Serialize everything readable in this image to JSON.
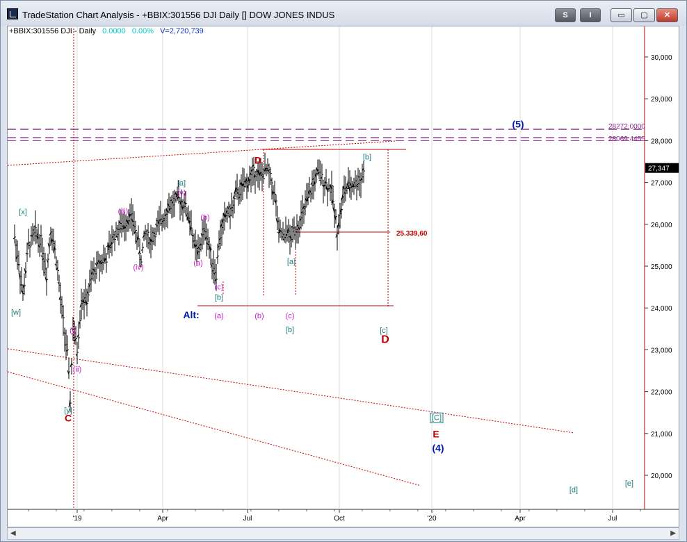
{
  "window": {
    "title": "TradeStation Chart Analysis - +BBIX:301556 DJI Daily [] DOW JONES INDUS",
    "buttons": {
      "s": "S",
      "i": "I",
      "min": "▭",
      "max": "▢",
      "close": "✕"
    }
  },
  "info": {
    "symbol": "+BBIX:301556 DJI - Daily",
    "change": "0.0000",
    "pct": "0.00%",
    "volume": "V=2,720,739"
  },
  "colors": {
    "red": "#c00000",
    "teal": "#1f7f7f",
    "magenta": "#cc22cc",
    "blue": "#0018a8",
    "purple": "#8a2a8a",
    "bars": "#000000"
  },
  "chart_data": {
    "type": "ohlc",
    "yticks": [
      "30,000",
      "29,000",
      "28,000",
      "27,000",
      "26,000",
      "25,000",
      "24,000",
      "23,000",
      "22,000",
      "21,000",
      "20,000"
    ],
    "xticks": [
      "'19",
      "Apr",
      "Jul",
      "Oct",
      "'20",
      "Apr",
      "Jul"
    ],
    "last_price": "27,347",
    "levels": [
      {
        "value": 28272,
        "label": "28272.0000"
      },
      {
        "value": 28069.4455,
        "label": "28069.4455"
      },
      {
        "value": 25339.6,
        "label": "25.339,60"
      }
    ],
    "price_path": [
      [
        0,
        25700
      ],
      [
        6,
        25100
      ],
      [
        12,
        24300
      ],
      [
        20,
        25500
      ],
      [
        30,
        25800
      ],
      [
        38,
        25600
      ],
      [
        46,
        24800
      ],
      [
        52,
        25900
      ],
      [
        60,
        25200
      ],
      [
        66,
        24200
      ],
      [
        72,
        23400
      ],
      [
        76,
        22900
      ],
      [
        80,
        21800
      ],
      [
        84,
        23500
      ],
      [
        90,
        23000
      ],
      [
        96,
        24200
      ],
      [
        104,
        24200
      ],
      [
        112,
        24800
      ],
      [
        122,
        25100
      ],
      [
        132,
        25200
      ],
      [
        142,
        25700
      ],
      [
        150,
        25900
      ],
      [
        158,
        26000
      ],
      [
        164,
        26200
      ],
      [
        170,
        26100
      ],
      [
        176,
        25700
      ],
      [
        182,
        25200
      ],
      [
        188,
        25800
      ],
      [
        196,
        25600
      ],
      [
        204,
        25900
      ],
      [
        212,
        26100
      ],
      [
        220,
        26400
      ],
      [
        228,
        26500
      ],
      [
        236,
        26600
      ],
      [
        244,
        26500
      ],
      [
        250,
        26200
      ],
      [
        254,
        26000
      ],
      [
        258,
        25500
      ],
      [
        264,
        25300
      ],
      [
        270,
        25700
      ],
      [
        274,
        25900
      ],
      [
        278,
        25600
      ],
      [
        282,
        25300
      ],
      [
        286,
        25000
      ],
      [
        290,
        24800
      ],
      [
        294,
        25600
      ],
      [
        300,
        26000
      ],
      [
        306,
        26300
      ],
      [
        312,
        26300
      ],
      [
        318,
        26700
      ],
      [
        324,
        26800
      ],
      [
        330,
        26900
      ],
      [
        336,
        27050
      ],
      [
        342,
        27200
      ],
      [
        348,
        27300
      ],
      [
        352,
        27150
      ],
      [
        358,
        27200
      ],
      [
        364,
        27300
      ],
      [
        370,
        27000
      ],
      [
        376,
        26500
      ],
      [
        380,
        25700
      ],
      [
        384,
        25800
      ],
      [
        388,
        25600
      ],
      [
        392,
        25900
      ],
      [
        396,
        25600
      ],
      [
        400,
        25800
      ],
      [
        404,
        25900
      ],
      [
        408,
        26000
      ],
      [
        412,
        26100
      ],
      [
        418,
        26400
      ],
      [
        424,
        26700
      ],
      [
        430,
        27000
      ],
      [
        436,
        27200
      ],
      [
        440,
        27150
      ],
      [
        446,
        27000
      ],
      [
        452,
        26900
      ],
      [
        456,
        26800
      ],
      [
        460,
        26300
      ],
      [
        464,
        25900
      ],
      [
        468,
        26200
      ],
      [
        474,
        26800
      ],
      [
        480,
        26900
      ],
      [
        486,
        26950
      ],
      [
        492,
        27000
      ],
      [
        498,
        27100
      ],
      [
        504,
        27300
      ]
    ],
    "labels": [
      {
        "text": "[x]",
        "color": "teal",
        "v": 26300,
        "t": 30
      },
      {
        "text": "[w]",
        "color": "teal",
        "v": 23900,
        "t": 20
      },
      {
        "text": "[y]",
        "color": "teal",
        "v": 21560,
        "t": 95
      },
      {
        "text": "C",
        "color": "red",
        "v": 21350,
        "t": 95
      },
      {
        "text": "(i)",
        "color": "magenta",
        "v": 23470,
        "t": 102
      },
      {
        "text": "(ii)",
        "color": "magenta",
        "v": 22540,
        "t": 108
      },
      {
        "text": "(iii)",
        "color": "magenta",
        "v": 26320,
        "t": 174
      },
      {
        "text": "(iv)",
        "color": "magenta",
        "v": 24980,
        "t": 196
      },
      {
        "text": "[a]",
        "color": "teal",
        "v": 26990,
        "t": 258
      },
      {
        "text": "(v)",
        "color": "magenta",
        "v": 26760,
        "t": 258
      },
      {
        "text": "(b)",
        "color": "magenta",
        "v": 26170,
        "t": 292
      },
      {
        "text": "(a)",
        "color": "magenta",
        "v": 25080,
        "t": 282
      },
      {
        "text": "(c)",
        "color": "magenta",
        "v": 24510,
        "t": 312
      },
      {
        "text": "[b]",
        "color": "teal",
        "v": 24260,
        "t": 312
      },
      {
        "text": "D",
        "color": "red",
        "v": 27520,
        "t": 368
      },
      {
        "text": "[b]",
        "color": "teal",
        "v": 27620,
        "t": 525
      },
      {
        "text": "[a]",
        "color": "teal",
        "v": 25120,
        "t": 416
      },
      {
        "text": "Alt:",
        "color": "blue",
        "v": 23820,
        "t": 272
      },
      {
        "text": "(a)",
        "color": "magenta",
        "v": 23820,
        "t": 312
      },
      {
        "text": "(b)",
        "color": "magenta",
        "v": 23820,
        "t": 370
      },
      {
        "text": "(c)",
        "color": "magenta",
        "v": 23820,
        "t": 414
      },
      {
        "text": "[b]",
        "color": "teal",
        "v": 23490,
        "t": 414
      },
      {
        "text": "[c]",
        "color": "teal",
        "v": 23470,
        "t": 549
      },
      {
        "text": "D",
        "color": "red",
        "v": 23230,
        "t": 551
      },
      {
        "text": "(5)",
        "color": "blue",
        "v": 28380,
        "t": 742
      },
      {
        "text": "[C]",
        "color": "teal",
        "v": 21390,
        "t": 625
      },
      {
        "text": "E",
        "color": "red",
        "v": 20970,
        "t": 624
      },
      {
        "text": "(4)",
        "color": "blue",
        "v": 20640,
        "t": 627
      },
      {
        "text": "[d]",
        "color": "teal",
        "v": 19660,
        "t": 822
      },
      {
        "text": "[e]",
        "color": "teal",
        "v": 19820,
        "t": 902
      }
    ]
  }
}
